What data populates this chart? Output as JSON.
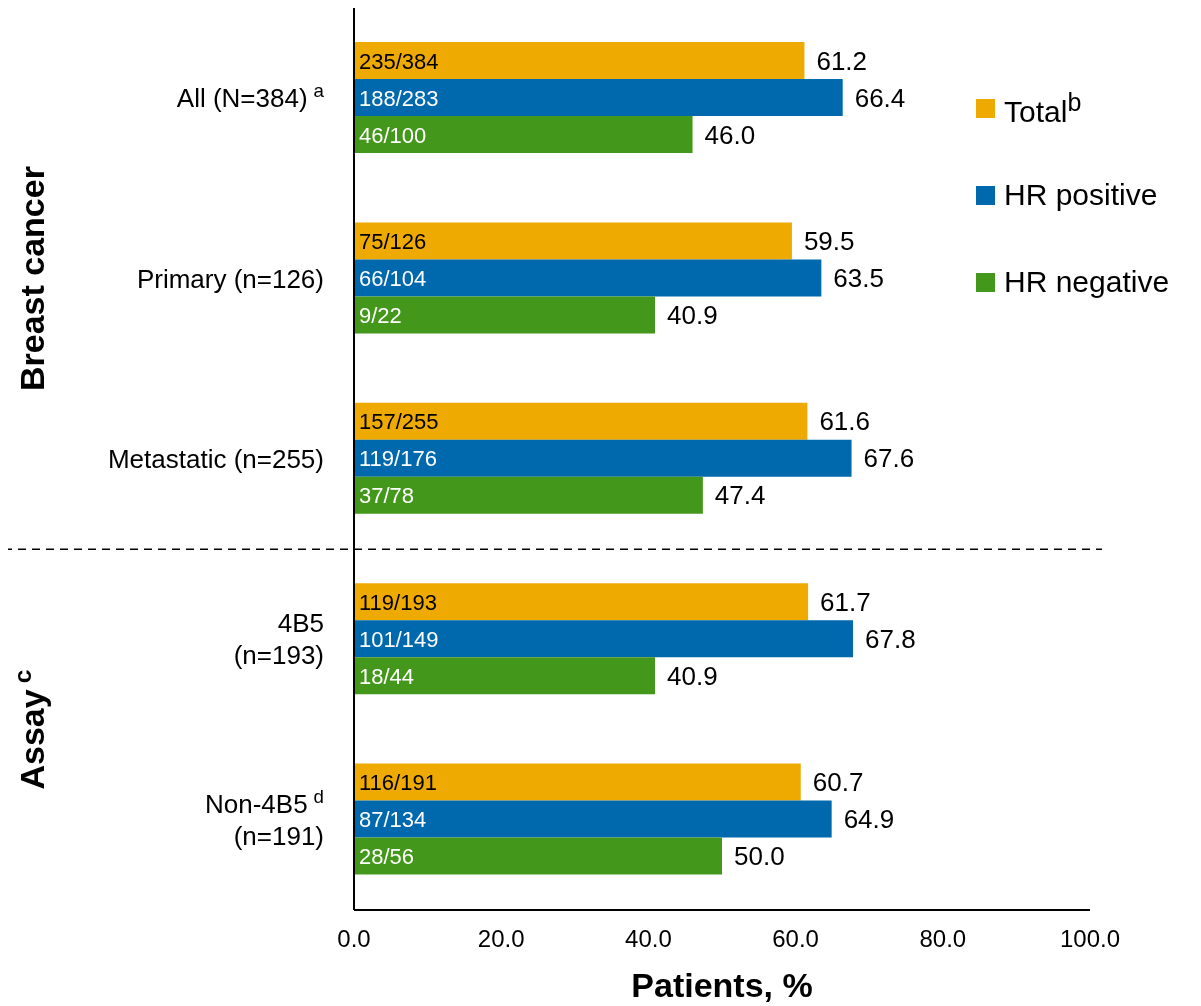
{
  "chart_data": {
    "type": "bar",
    "orientation": "horizontal",
    "xlabel": "Patients, %",
    "categories": [
      "All (N=384)$^{a}$",
      "Primary (n=126)",
      "Metastatic (n=255)",
      "4B5\n(n=193)",
      "Non-4B5$^{d}$\n(n=191)"
    ],
    "series": [
      {
        "name": "Total$^{b}$",
        "color": "#eeaa00",
        "values": [
          61.2,
          59.5,
          61.6,
          61.7,
          60.7
        ],
        "value_labels": [
          "61.2",
          "59.5",
          "61.6",
          "61.7",
          "60.7"
        ]
      },
      {
        "name": "HR positive",
        "color": "#0068ac",
        "values": [
          66.4,
          63.5,
          67.6,
          67.8,
          64.9
        ],
        "value_labels": [
          "66.4",
          "63.5",
          "67.6",
          "67.8",
          "64.9"
        ]
      },
      {
        "name": "HR negative",
        "color": "#43971a",
        "values": [
          46.0,
          40.9,
          47.4,
          40.9,
          50.0
        ],
        "value_labels": [
          "46.0",
          "40.9",
          "47.4",
          "40.9",
          "50.0"
        ]
      }
    ],
    "xlim": [
      0,
      100
    ],
    "xticks": [
      {
        "value": 0,
        "label": "0.0"
      },
      {
        "value": 20,
        "label": "20.0"
      },
      {
        "value": 40,
        "label": "40.0"
      },
      {
        "value": 60,
        "label": "60.0"
      },
      {
        "value": 80,
        "label": "80.0"
      },
      {
        "value": 100,
        "label": "100.0"
      }
    ],
    "annotations": [
      "Breast cancer",
      "Assay$^{c}$",
      "235/384",
      "188/283",
      "46/100",
      "75/126",
      "66/104",
      "9/22",
      "157/255",
      "119/176",
      "37/78",
      "119/193",
      "101/149",
      "18/44",
      "116/191",
      "87/134",
      "28/56"
    ],
    "legend": "top right"
  }
}
